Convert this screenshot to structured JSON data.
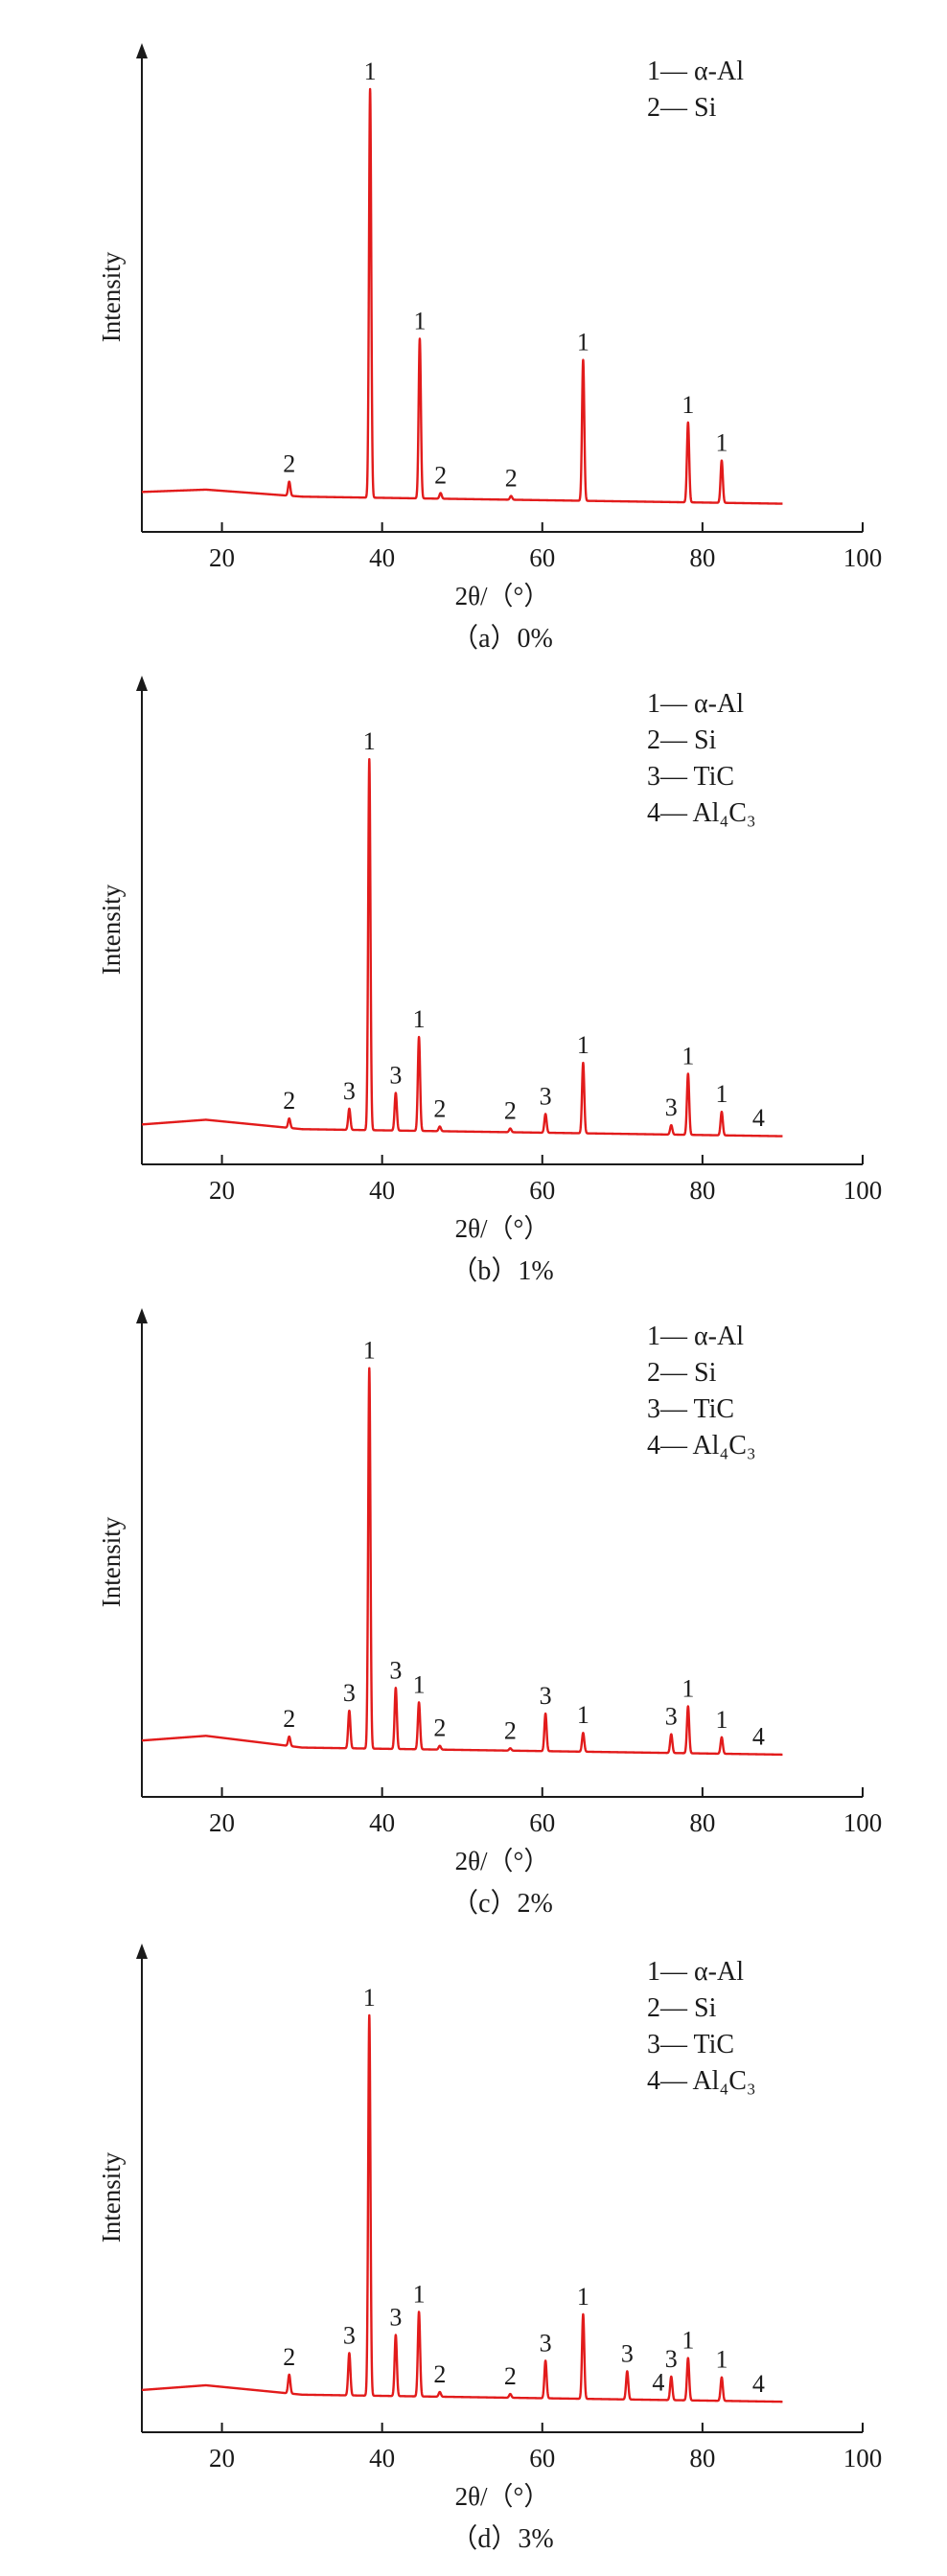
{
  "chart_data": [
    {
      "type": "line",
      "caption": "（a）0%",
      "xlabel": "2θ/（°）",
      "ylabel": "Intensity",
      "xlim": [
        10,
        100
      ],
      "xticks": [
        20,
        40,
        60,
        80,
        100
      ],
      "legend": [
        "1— α-Al",
        "2— Si"
      ],
      "trace_x_range": [
        10,
        90
      ],
      "baseline": [
        [
          10,
          0.085
        ],
        [
          18,
          0.09
        ],
        [
          30,
          0.075
        ],
        [
          50,
          0.07
        ],
        [
          70,
          0.065
        ],
        [
          90,
          0.06
        ]
      ],
      "peaks": [
        {
          "x": 28.4,
          "height": 0.03,
          "label": "2"
        },
        {
          "x": 38.5,
          "height": 0.87,
          "label": "1"
        },
        {
          "x": 44.7,
          "height": 0.34,
          "label": "1"
        },
        {
          "x": 47.3,
          "height": 0.012,
          "label": "2"
        },
        {
          "x": 56.1,
          "height": 0.008,
          "label": "2"
        },
        {
          "x": 65.1,
          "height": 0.3,
          "label": "1"
        },
        {
          "x": 78.2,
          "height": 0.17,
          "label": "1"
        },
        {
          "x": 82.4,
          "height": 0.09,
          "label": "1"
        }
      ]
    },
    {
      "type": "line",
      "caption": "（b）1%",
      "xlabel": "2θ/（°）",
      "ylabel": "Intensity",
      "xlim": [
        10,
        100
      ],
      "xticks": [
        20,
        40,
        60,
        80,
        100
      ],
      "legend": [
        "1— α-Al",
        "2— Si",
        "3— TiC",
        "4— Al₄C₃"
      ],
      "trace_x_range": [
        10,
        90
      ],
      "baseline": [
        [
          10,
          0.085
        ],
        [
          18,
          0.095
        ],
        [
          30,
          0.075
        ],
        [
          50,
          0.07
        ],
        [
          70,
          0.065
        ],
        [
          90,
          0.06
        ]
      ],
      "peaks": [
        {
          "x": 28.4,
          "height": 0.02,
          "label": "2"
        },
        {
          "x": 35.9,
          "height": 0.045,
          "label": "3"
        },
        {
          "x": 38.4,
          "height": 0.79,
          "label": "1"
        },
        {
          "x": 41.7,
          "height": 0.08,
          "label": "3"
        },
        {
          "x": 44.6,
          "height": 0.2,
          "label": "1"
        },
        {
          "x": 47.2,
          "height": 0.01,
          "label": "2"
        },
        {
          "x": 56.0,
          "height": 0.008,
          "label": "2"
        },
        {
          "x": 60.4,
          "height": 0.04,
          "label": "3"
        },
        {
          "x": 65.1,
          "height": 0.15,
          "label": "1"
        },
        {
          "x": 76.1,
          "height": 0.02,
          "label": "3"
        },
        {
          "x": 78.2,
          "height": 0.13,
          "label": "1"
        },
        {
          "x": 82.4,
          "height": 0.05,
          "label": "1"
        },
        {
          "x": 87.0,
          "height": 0.0,
          "label": "4"
        }
      ]
    },
    {
      "type": "line",
      "caption": "（c）2%",
      "xlabel": "2θ/（°）",
      "ylabel": "Intensity",
      "xlim": [
        10,
        100
      ],
      "xticks": [
        20,
        40,
        60,
        80,
        100
      ],
      "legend": [
        "1— α-Al",
        "2— Si",
        "3— TiC",
        "4— Al₄C₃"
      ],
      "trace_x_range": [
        10,
        90
      ],
      "baseline": [
        [
          10,
          0.12
        ],
        [
          18,
          0.13
        ],
        [
          30,
          0.105
        ],
        [
          50,
          0.1
        ],
        [
          70,
          0.095
        ],
        [
          90,
          0.09
        ]
      ],
      "peaks": [
        {
          "x": 28.4,
          "height": 0.02,
          "label": "2"
        },
        {
          "x": 35.9,
          "height": 0.08,
          "label": "3"
        },
        {
          "x": 38.4,
          "height": 0.81,
          "label": "1"
        },
        {
          "x": 41.7,
          "height": 0.13,
          "label": "3"
        },
        {
          "x": 44.6,
          "height": 0.1,
          "label": "1"
        },
        {
          "x": 47.2,
          "height": 0.008,
          "label": "2"
        },
        {
          "x": 56.0,
          "height": 0.005,
          "label": "2"
        },
        {
          "x": 60.4,
          "height": 0.08,
          "label": "3"
        },
        {
          "x": 65.1,
          "height": 0.04,
          "label": "1"
        },
        {
          "x": 76.1,
          "height": 0.04,
          "label": "3"
        },
        {
          "x": 78.2,
          "height": 0.1,
          "label": "1"
        },
        {
          "x": 82.4,
          "height": 0.035,
          "label": "1"
        },
        {
          "x": 87.0,
          "height": 0.0,
          "label": "4"
        }
      ]
    },
    {
      "type": "line",
      "caption": "（d）3%",
      "xlabel": "2θ/（°）",
      "ylabel": "Intensity",
      "xlim": [
        10,
        100
      ],
      "xticks": [
        20,
        40,
        60,
        80,
        100
      ],
      "legend": [
        "1— α-Al",
        "2— Si",
        "3— TiC",
        "4— Al₄C₃"
      ],
      "trace_x_range": [
        10,
        90
      ],
      "baseline": [
        [
          10,
          0.09
        ],
        [
          18,
          0.1
        ],
        [
          30,
          0.08
        ],
        [
          50,
          0.075
        ],
        [
          70,
          0.07
        ],
        [
          90,
          0.065
        ]
      ],
      "peaks": [
        {
          "x": 28.4,
          "height": 0.04,
          "label": "2"
        },
        {
          "x": 35.9,
          "height": 0.09,
          "label": "3"
        },
        {
          "x": 38.4,
          "height": 0.81,
          "label": "1"
        },
        {
          "x": 41.7,
          "height": 0.13,
          "label": "3"
        },
        {
          "x": 44.6,
          "height": 0.18,
          "label": "1"
        },
        {
          "x": 47.2,
          "height": 0.01,
          "label": "2"
        },
        {
          "x": 56.0,
          "height": 0.008,
          "label": "2"
        },
        {
          "x": 60.4,
          "height": 0.08,
          "label": "3"
        },
        {
          "x": 65.1,
          "height": 0.18,
          "label": "1"
        },
        {
          "x": 70.6,
          "height": 0.06,
          "label": "3"
        },
        {
          "x": 74.5,
          "height": 0.0,
          "label": "4"
        },
        {
          "x": 76.1,
          "height": 0.05,
          "label": "3"
        },
        {
          "x": 78.2,
          "height": 0.09,
          "label": "1"
        },
        {
          "x": 82.4,
          "height": 0.05,
          "label": "1"
        },
        {
          "x": 87.0,
          "height": 0.0,
          "label": "4"
        }
      ]
    }
  ],
  "colors": {
    "trace": "#e21b1b",
    "axes": "#1a1a1a"
  }
}
